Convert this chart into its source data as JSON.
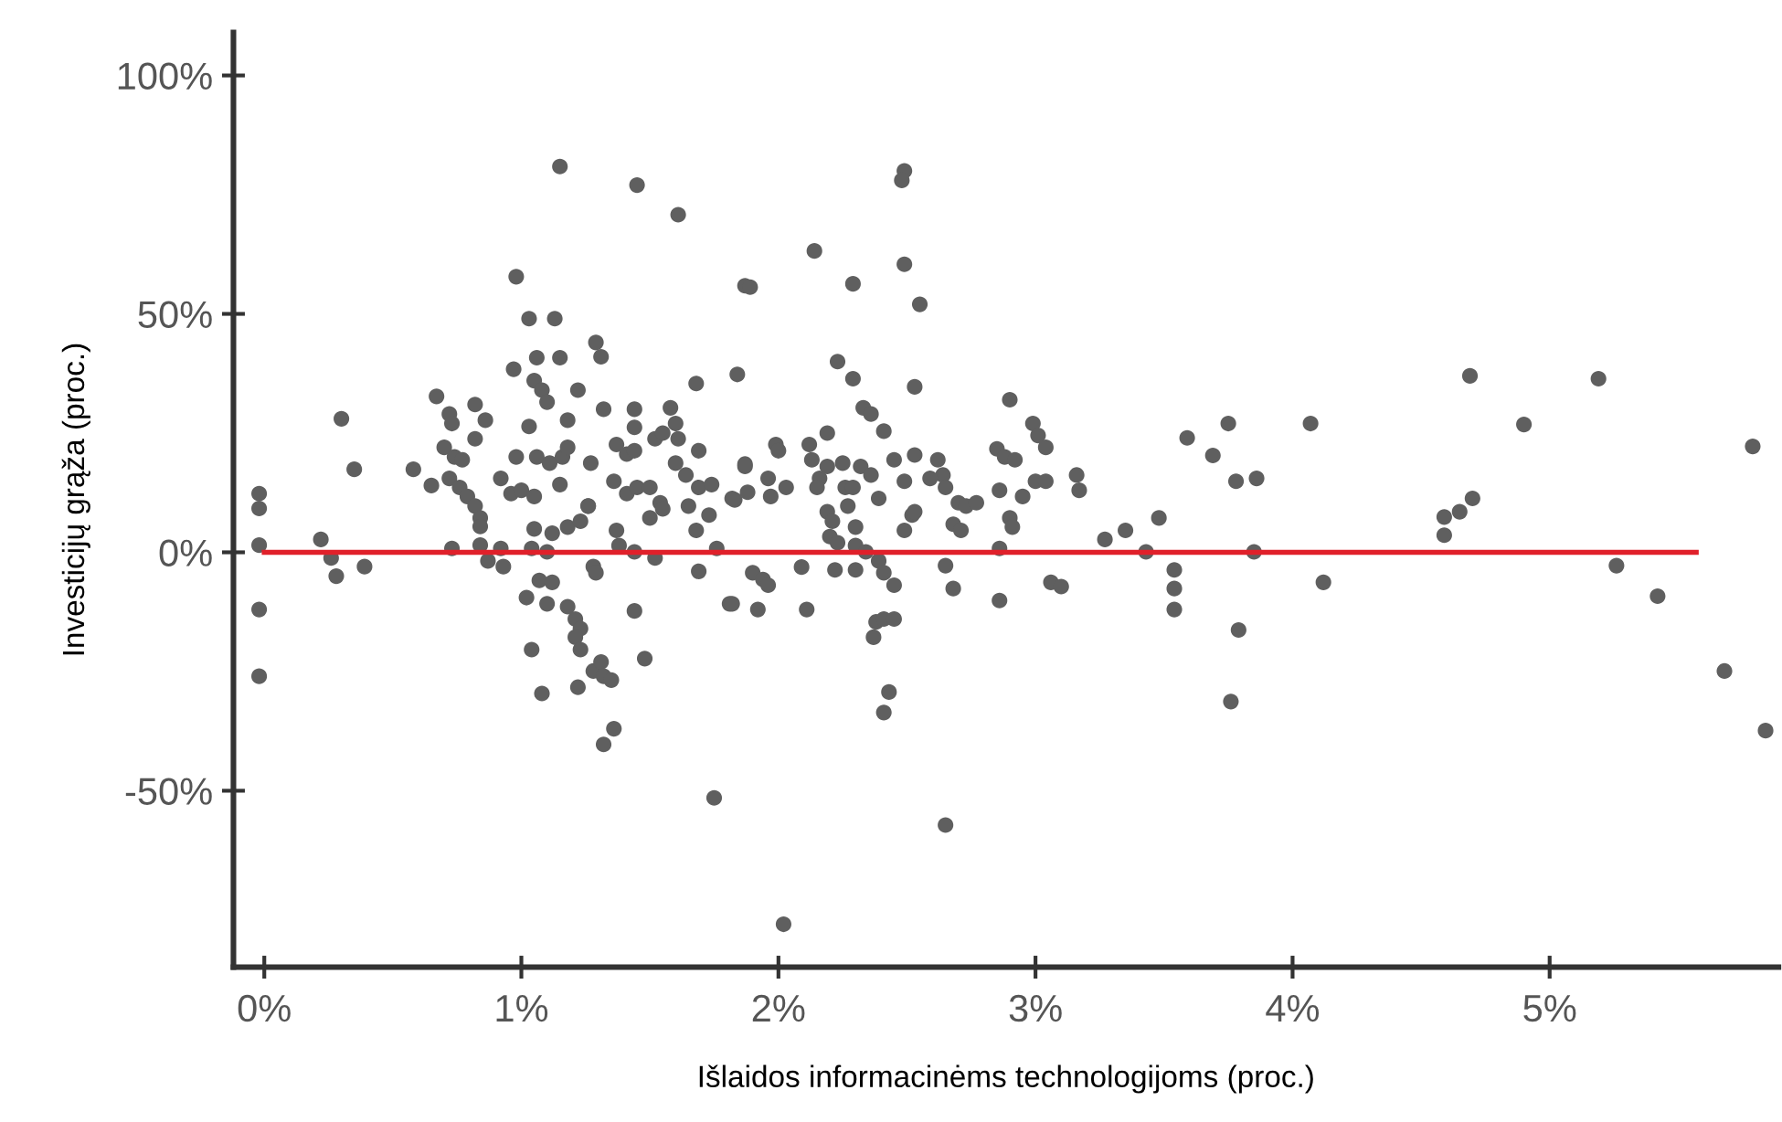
{
  "chart_data": {
    "type": "scatter",
    "xlabel": "Išlaidos informacinėms technologijoms (proc.)",
    "ylabel": "Investicijų grąža (proc.)",
    "xlim": [
      -0.12,
      5.89
    ],
    "ylim": [
      -87,
      109
    ],
    "xticks": [
      {
        "value": 0,
        "label": "0%"
      },
      {
        "value": 1,
        "label": "1%"
      },
      {
        "value": 2,
        "label": "2%"
      },
      {
        "value": 3,
        "label": "3%"
      },
      {
        "value": 4,
        "label": "4%"
      },
      {
        "value": 5,
        "label": "5%"
      }
    ],
    "yticks": [
      {
        "value": 100,
        "label": "100%"
      },
      {
        "value": 50,
        "label": "50%"
      },
      {
        "value": 0,
        "label": "0%"
      },
      {
        "value": -50,
        "label": "-50%"
      }
    ],
    "grid": false,
    "series": [
      {
        "color": "#5f5f5f",
        "marker": "circle",
        "x": [
          1.15,
          1.45,
          1.61,
          0.98,
          1.03,
          1.13,
          1.06,
          1.15,
          1.29,
          1.31,
          0.97,
          0.3,
          0.35,
          -0.02,
          -0.02,
          -0.02,
          -0.02,
          -0.02,
          0.22,
          0.26,
          0.28,
          0.39,
          0.58,
          0.65,
          0.67,
          0.72,
          0.73,
          0.82,
          0.86,
          0.7,
          0.74,
          0.77,
          0.82,
          0.72,
          0.76,
          0.79,
          0.82,
          0.84,
          0.84,
          0.73,
          0.84,
          0.87,
          0.93,
          0.92,
          0.92,
          0.96,
          1.0,
          1.05,
          0.98,
          1.03,
          1.05,
          1.08,
          1.1,
          1.06,
          1.11,
          1.16,
          1.18,
          1.18,
          1.22,
          1.15,
          1.05,
          1.12,
          1.18,
          1.23,
          1.26,
          1.04,
          1.1,
          1.02,
          1.07,
          1.12,
          1.1,
          1.18,
          1.21,
          1.23,
          1.21,
          1.23,
          1.04,
          1.08,
          1.22,
          1.28,
          1.31,
          1.32,
          1.35,
          1.36,
          1.32,
          1.44,
          1.48,
          1.28,
          1.29,
          1.27,
          1.32,
          1.26,
          1.37,
          1.41,
          1.44,
          1.36,
          1.41,
          1.45,
          1.44,
          1.44,
          1.37,
          1.38,
          1.44,
          1.52,
          1.5,
          1.54,
          1.5,
          1.55,
          1.52,
          1.55,
          1.58,
          1.6,
          1.61,
          1.6,
          1.64,
          1.69,
          1.74,
          1.65,
          1.73,
          1.68,
          1.68,
          1.69,
          1.69,
          1.76,
          1.81,
          1.75,
          1.87,
          1.84,
          1.87,
          1.83,
          2.49,
          2.48,
          2.14,
          2.49,
          1.89,
          2.29,
          2.55,
          2.23,
          2.29,
          2.53,
          2.9,
          2.33,
          2.36,
          2.41,
          2.99,
          3.01,
          3.04,
          2.85,
          2.88,
          2.92,
          3.16,
          3.17,
          3.0,
          3.04,
          2.95,
          2.86,
          1.87,
          1.99,
          2.0,
          1.96,
          1.88,
          1.97,
          2.03,
          1.82,
          2.12,
          2.19,
          2.13,
          2.19,
          2.25,
          2.32,
          2.36,
          2.45,
          2.53,
          2.62,
          2.64,
          2.59,
          2.16,
          2.15,
          2.26,
          2.29,
          2.39,
          2.49,
          2.65,
          2.19,
          2.21,
          2.27,
          2.3,
          2.2,
          2.23,
          2.3,
          2.34,
          2.52,
          2.49,
          2.53,
          2.7,
          2.73,
          2.77,
          2.68,
          2.71,
          2.9,
          2.91,
          2.86,
          2.65,
          2.68,
          2.86,
          3.06,
          3.1,
          3.27,
          3.35,
          3.48,
          3.43,
          3.54,
          3.54,
          3.54,
          3.59,
          3.69,
          3.75,
          3.78,
          3.76,
          3.79,
          1.9,
          1.94,
          1.96,
          1.82,
          1.92,
          2.11,
          2.09,
          2.22,
          2.3,
          2.39,
          2.41,
          2.45,
          2.38,
          2.41,
          2.45,
          2.37,
          2.43,
          2.41,
          2.65,
          2.02,
          4.07,
          3.86,
          3.85,
          4.12,
          4.69,
          4.9,
          5.19,
          4.59,
          4.59,
          4.65,
          4.7,
          5.26,
          5.42,
          5.68,
          5.84,
          5.79
        ],
        "values": [
          80.9,
          77,
          70.8,
          57.8,
          49,
          49,
          40.8,
          40.8,
          44,
          41,
          38.4,
          28,
          17.4,
          12.3,
          9.2,
          1.5,
          -12,
          -26,
          2.7,
          -1.2,
          -5,
          -3,
          17.4,
          14,
          32.7,
          29,
          27,
          31,
          27.7,
          22,
          20,
          19.4,
          23.8,
          15.5,
          13.6,
          11.7,
          9.7,
          7.2,
          5.4,
          0.8,
          1.5,
          -1.8,
          -3,
          0.8,
          15.5,
          12.3,
          13,
          11.7,
          20,
          26.4,
          36,
          34,
          31.5,
          20,
          18.7,
          20,
          22,
          27.7,
          34,
          14.2,
          4.9,
          4,
          5.3,
          6.5,
          9.7,
          0.8,
          0.1,
          -9.5,
          -5.9,
          -6.3,
          -10.8,
          -11.4,
          -14,
          -16,
          -17.8,
          -20.4,
          -20.4,
          -29.6,
          -28.3,
          -24.9,
          -23,
          -26,
          -26.8,
          -37,
          -40.3,
          -12.3,
          -22.3,
          -3,
          -4.3,
          18.7,
          30,
          9.7,
          22.6,
          20.6,
          21.3,
          14.9,
          12.3,
          13.6,
          30,
          26.2,
          4.6,
          1.4,
          0.1,
          -1.2,
          13.6,
          10.4,
          7.2,
          9.1,
          23.8,
          25,
          30.3,
          27,
          23.8,
          18.7,
          16.2,
          13.6,
          14.2,
          9.7,
          7.8,
          4.6,
          35.4,
          21.3,
          -4,
          0.8,
          -10.8,
          -51.5,
          55.9,
          37.3,
          18,
          11,
          80,
          78,
          63.2,
          60.4,
          55.6,
          56.3,
          52,
          40,
          36.4,
          34.7,
          32,
          30.3,
          29,
          25.4,
          27,
          24.5,
          22,
          21.7,
          20,
          19.4,
          16.2,
          13,
          14.9,
          14.9,
          11.7,
          13,
          18.5,
          22.6,
          21.3,
          15.5,
          12.6,
          11.7,
          13.6,
          11.3,
          22.6,
          25,
          19.4,
          18,
          18.7,
          18,
          16.2,
          19.4,
          20.4,
          19.4,
          16.2,
          15.5,
          15.5,
          13.6,
          13.6,
          13.6,
          11.3,
          14.9,
          13.6,
          8.5,
          6.5,
          9.7,
          5.3,
          3.3,
          2,
          1.4,
          0.1,
          7.8,
          4.6,
          8.5,
          10.4,
          9.7,
          10.4,
          5.9,
          4.6,
          7.2,
          5.3,
          0.8,
          -2.8,
          -7.6,
          -10.1,
          -6.3,
          -7.2,
          2.7,
          4.6,
          7.2,
          0.1,
          -3.7,
          -7.6,
          -12,
          24,
          20.3,
          27,
          14.9,
          -31.3,
          -16.3,
          -4.3,
          -5.7,
          -6.9,
          -10.8,
          -12,
          -12,
          -3.1,
          -3.7,
          -3.7,
          -1.8,
          -4.3,
          -6.9,
          -14.6,
          -14,
          -14,
          -17.8,
          -29.3,
          -33.6,
          -57.2,
          -78,
          27,
          15.5,
          0.1,
          -6.3,
          37,
          26.8,
          36.4,
          3.6,
          7.4,
          8.5,
          11.3,
          -2.8,
          -9.2,
          -24.9,
          -37.4,
          22.2
        ]
      },
      {
        "type": "line",
        "color": "#e0202a",
        "marker": "none",
        "x": [
          0,
          5.57
        ],
        "values": [
          0,
          0
        ]
      }
    ]
  }
}
